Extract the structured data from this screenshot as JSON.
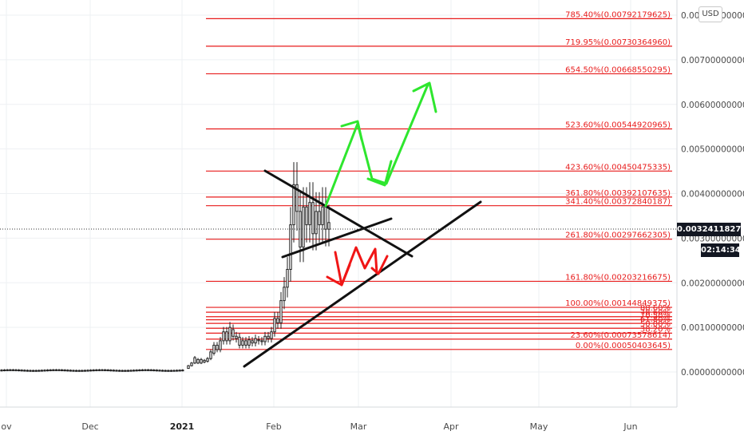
{
  "chart_data": {
    "type": "candlestick",
    "currency": "USD",
    "current_price": "0.00324118278",
    "countdown": "02:14:34",
    "price_axis": [
      "0.00800000000",
      "0.00700000000",
      "0.00600000000",
      "0.00500000000",
      "0.00400000000",
      "0.00300000000",
      "0.00200000000",
      "0.00100000000",
      "0.00000000000"
    ],
    "time_axis": [
      "ov",
      "Dec",
      "2021",
      "Feb",
      "Mar",
      "Apr",
      "May",
      "Jun"
    ],
    "fib_levels": [
      {
        "label": "785.40%(0.00792179625)",
        "price": 0.00792179625
      },
      {
        "label": "719.95%(0.00730364960)",
        "price": 0.0073036496
      },
      {
        "label": "654.50%(0.00668550295)",
        "price": 0.00668550295
      },
      {
        "label": "523.60%(0.00544920965)",
        "price": 0.00544920965
      },
      {
        "label": "423.60%(0.00450475335)",
        "price": 0.00450475335
      },
      {
        "label": "361.80%(0.00392107635)",
        "price": 0.00392107635
      },
      {
        "label": "341.40%(0.00372840187)",
        "price": 0.00372840187
      },
      {
        "label": "261.80%(0.00297662305)",
        "price": 0.00297662305
      },
      {
        "label": "161.80%(0.00203216675)",
        "price": 0.00203216675
      },
      {
        "label": "100.00%(0.00144849375)",
        "price": 0.00144849375
      },
      {
        "label": "88.60%",
        "price": 0.00134
      },
      {
        "label": "78.60%",
        "price": 0.00124
      },
      {
        "label": "70.50%",
        "price": 0.00117
      },
      {
        "label": "61.80%",
        "price": 0.00109
      },
      {
        "label": "50.00%",
        "price": 0.00098
      },
      {
        "label": "38.20%",
        "price": 0.00087
      },
      {
        "label": "23.60%(0.00073578614)",
        "price": 0.00073578614
      },
      {
        "label": "0.00%(0.00050403645)",
        "price": 0.00050403645
      }
    ]
  },
  "colors": {
    "fib": "#e81c1c",
    "arrow_up": "#2ee62e",
    "arrow_down": "#f01616",
    "trendline": "#111111"
  }
}
